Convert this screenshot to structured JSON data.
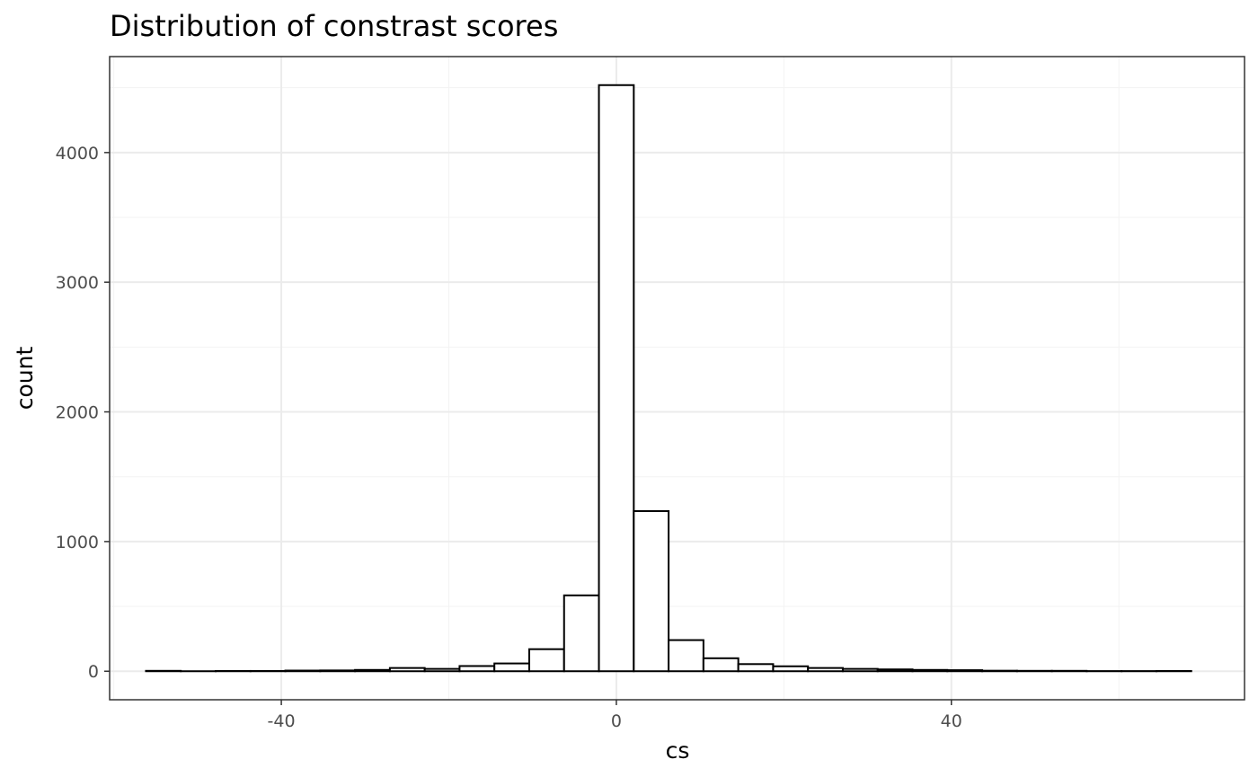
{
  "chart_data": {
    "type": "bar",
    "title": "Distribution of constrast scores",
    "xlabel": "cs",
    "ylabel": "count",
    "xlim": [
      -60.5,
      75
    ],
    "ylim": [
      -220,
      4740
    ],
    "xticks": [
      -40,
      0,
      40
    ],
    "xtick_labels": [
      "-40",
      "0",
      "40"
    ],
    "yticks": [
      0,
      1000,
      2000,
      3000,
      4000
    ],
    "ytick_labels": [
      "0",
      "1000",
      "2000",
      "3000",
      "4000"
    ],
    "grid": true,
    "bin_width": 4.16,
    "bins": [
      {
        "x0": -56.16,
        "x1": -52.0,
        "count": 3
      },
      {
        "x0": -52.0,
        "x1": -47.84,
        "count": 0
      },
      {
        "x0": -47.84,
        "x1": -43.68,
        "count": 2
      },
      {
        "x0": -43.68,
        "x1": -39.52,
        "count": 2
      },
      {
        "x0": -39.52,
        "x1": -35.36,
        "count": 5
      },
      {
        "x0": -35.36,
        "x1": -31.2,
        "count": 6
      },
      {
        "x0": -31.2,
        "x1": -27.04,
        "count": 10
      },
      {
        "x0": -27.04,
        "x1": -22.88,
        "count": 25
      },
      {
        "x0": -22.88,
        "x1": -18.72,
        "count": 18
      },
      {
        "x0": -18.72,
        "x1": -14.56,
        "count": 40
      },
      {
        "x0": -14.56,
        "x1": -10.4,
        "count": 60
      },
      {
        "x0": -10.4,
        "x1": -6.24,
        "count": 170
      },
      {
        "x0": -6.24,
        "x1": -2.08,
        "count": 585
      },
      {
        "x0": -2.08,
        "x1": 2.08,
        "count": 4520
      },
      {
        "x0": 2.08,
        "x1": 6.24,
        "count": 1235
      },
      {
        "x0": 6.24,
        "x1": 10.4,
        "count": 240
      },
      {
        "x0": 10.4,
        "x1": 14.56,
        "count": 100
      },
      {
        "x0": 14.56,
        "x1": 18.72,
        "count": 55
      },
      {
        "x0": 18.72,
        "x1": 22.88,
        "count": 38
      },
      {
        "x0": 22.88,
        "x1": 27.04,
        "count": 25
      },
      {
        "x0": 27.04,
        "x1": 31.2,
        "count": 18
      },
      {
        "x0": 31.2,
        "x1": 35.36,
        "count": 14
      },
      {
        "x0": 35.36,
        "x1": 39.52,
        "count": 10
      },
      {
        "x0": 39.52,
        "x1": 43.68,
        "count": 8
      },
      {
        "x0": 43.68,
        "x1": 47.84,
        "count": 4
      },
      {
        "x0": 47.84,
        "x1": 52.0,
        "count": 3
      },
      {
        "x0": 52.0,
        "x1": 56.16,
        "count": 3
      },
      {
        "x0": 56.16,
        "x1": 60.32,
        "count": 1
      },
      {
        "x0": 60.32,
        "x1": 64.48,
        "count": 1
      },
      {
        "x0": 64.48,
        "x1": 68.64,
        "count": 2
      }
    ]
  }
}
